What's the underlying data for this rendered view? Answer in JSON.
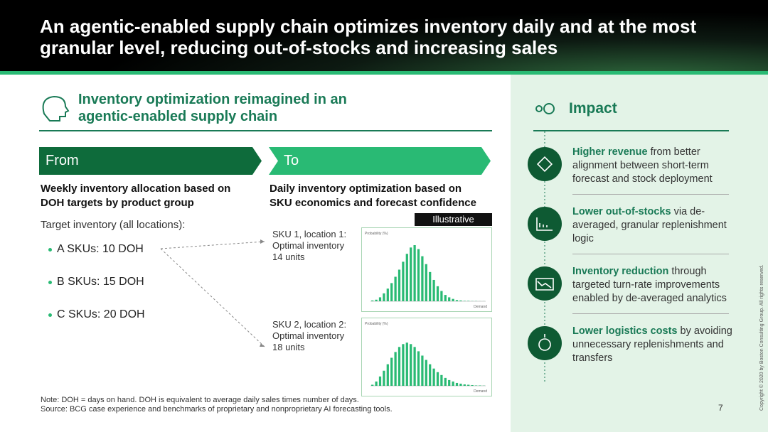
{
  "header": {
    "title": "An agentic-enabled supply chain optimizes inventory daily and at the most granular level, reducing out-of-stocks and increasing sales"
  },
  "left": {
    "heading": "Inventory optimization reimagined in an agentic-enabled supply chain",
    "from": {
      "label": "From",
      "description": "Weekly inventory allocation based on DOH targets by product group",
      "target_label": "Target inventory (all locations):",
      "items": [
        "A SKUs: 10 DOH",
        "B SKUs: 15 DOH",
        "C SKUs: 20 DOH"
      ]
    },
    "to": {
      "label": "To",
      "description": "Daily inventory optimization based on SKU economics and forecast confidence",
      "badge": "Illustrative",
      "skus": [
        {
          "label": "SKU 1, location 1:",
          "text": "Optimal inventory",
          "units": "14 units",
          "histogram": {
            "y_label": "Probability (%)",
            "x_label": "Demand",
            "ylim": [
              0,
              16
            ],
            "values": [
              0.2,
              0.4,
              1,
              2,
              3.2,
              4.6,
              6.2,
              8,
              10,
              12,
              13.6,
              14.2,
              13.2,
              11.4,
              9.4,
              7.4,
              5.4,
              3.8,
              2.6,
              1.6,
              1,
              0.6,
              0.3,
              0.2,
              0.1,
              0.1,
              0.05,
              0.05,
              0.02,
              0.02
            ]
          }
        },
        {
          "label": "SKU 2, location 2:",
          "text": "Optimal inventory",
          "units": "18 units",
          "histogram": {
            "y_label": "Probability (%)",
            "x_label": "Demand",
            "ylim": [
              0,
              16
            ],
            "values": [
              0.3,
              1.2,
              2.6,
              4.2,
              6,
              7.8,
              9.4,
              10.8,
              11.6,
              12,
              11.6,
              10.8,
              9.6,
              8.4,
              7.2,
              6,
              4.8,
              3.8,
              3,
              2.2,
              1.6,
              1.2,
              0.8,
              0.6,
              0.4,
              0.3,
              0.2,
              0.1,
              0.1,
              0.05
            ]
          }
        }
      ]
    }
  },
  "notes": [
    "Note: DOH = days on hand. DOH is equivalent to average daily sales times number of days.",
    "Source: BCG case experience and benchmarks of proprietary and nonproprietary AI forecasting tools."
  ],
  "impact": {
    "title": "Impact",
    "items": [
      {
        "title": "Higher revenue",
        "text": "from better alignment between short-term forecast and stock deployment"
      },
      {
        "title": "Lower out-of-stocks",
        "text": "via de-averaged, granular replenishment logic"
      },
      {
        "title": "Inventory reduction",
        "text": "through targeted turn-rate improvements enabled by de-averaged analytics"
      },
      {
        "title": "Lower logistics costs",
        "text": "by avoiding unnecessary replenishments and transfers"
      }
    ]
  },
  "page_number": "7",
  "copyright": "Copyright © 2020 by Boston Consulting Group. All rights reserved."
}
